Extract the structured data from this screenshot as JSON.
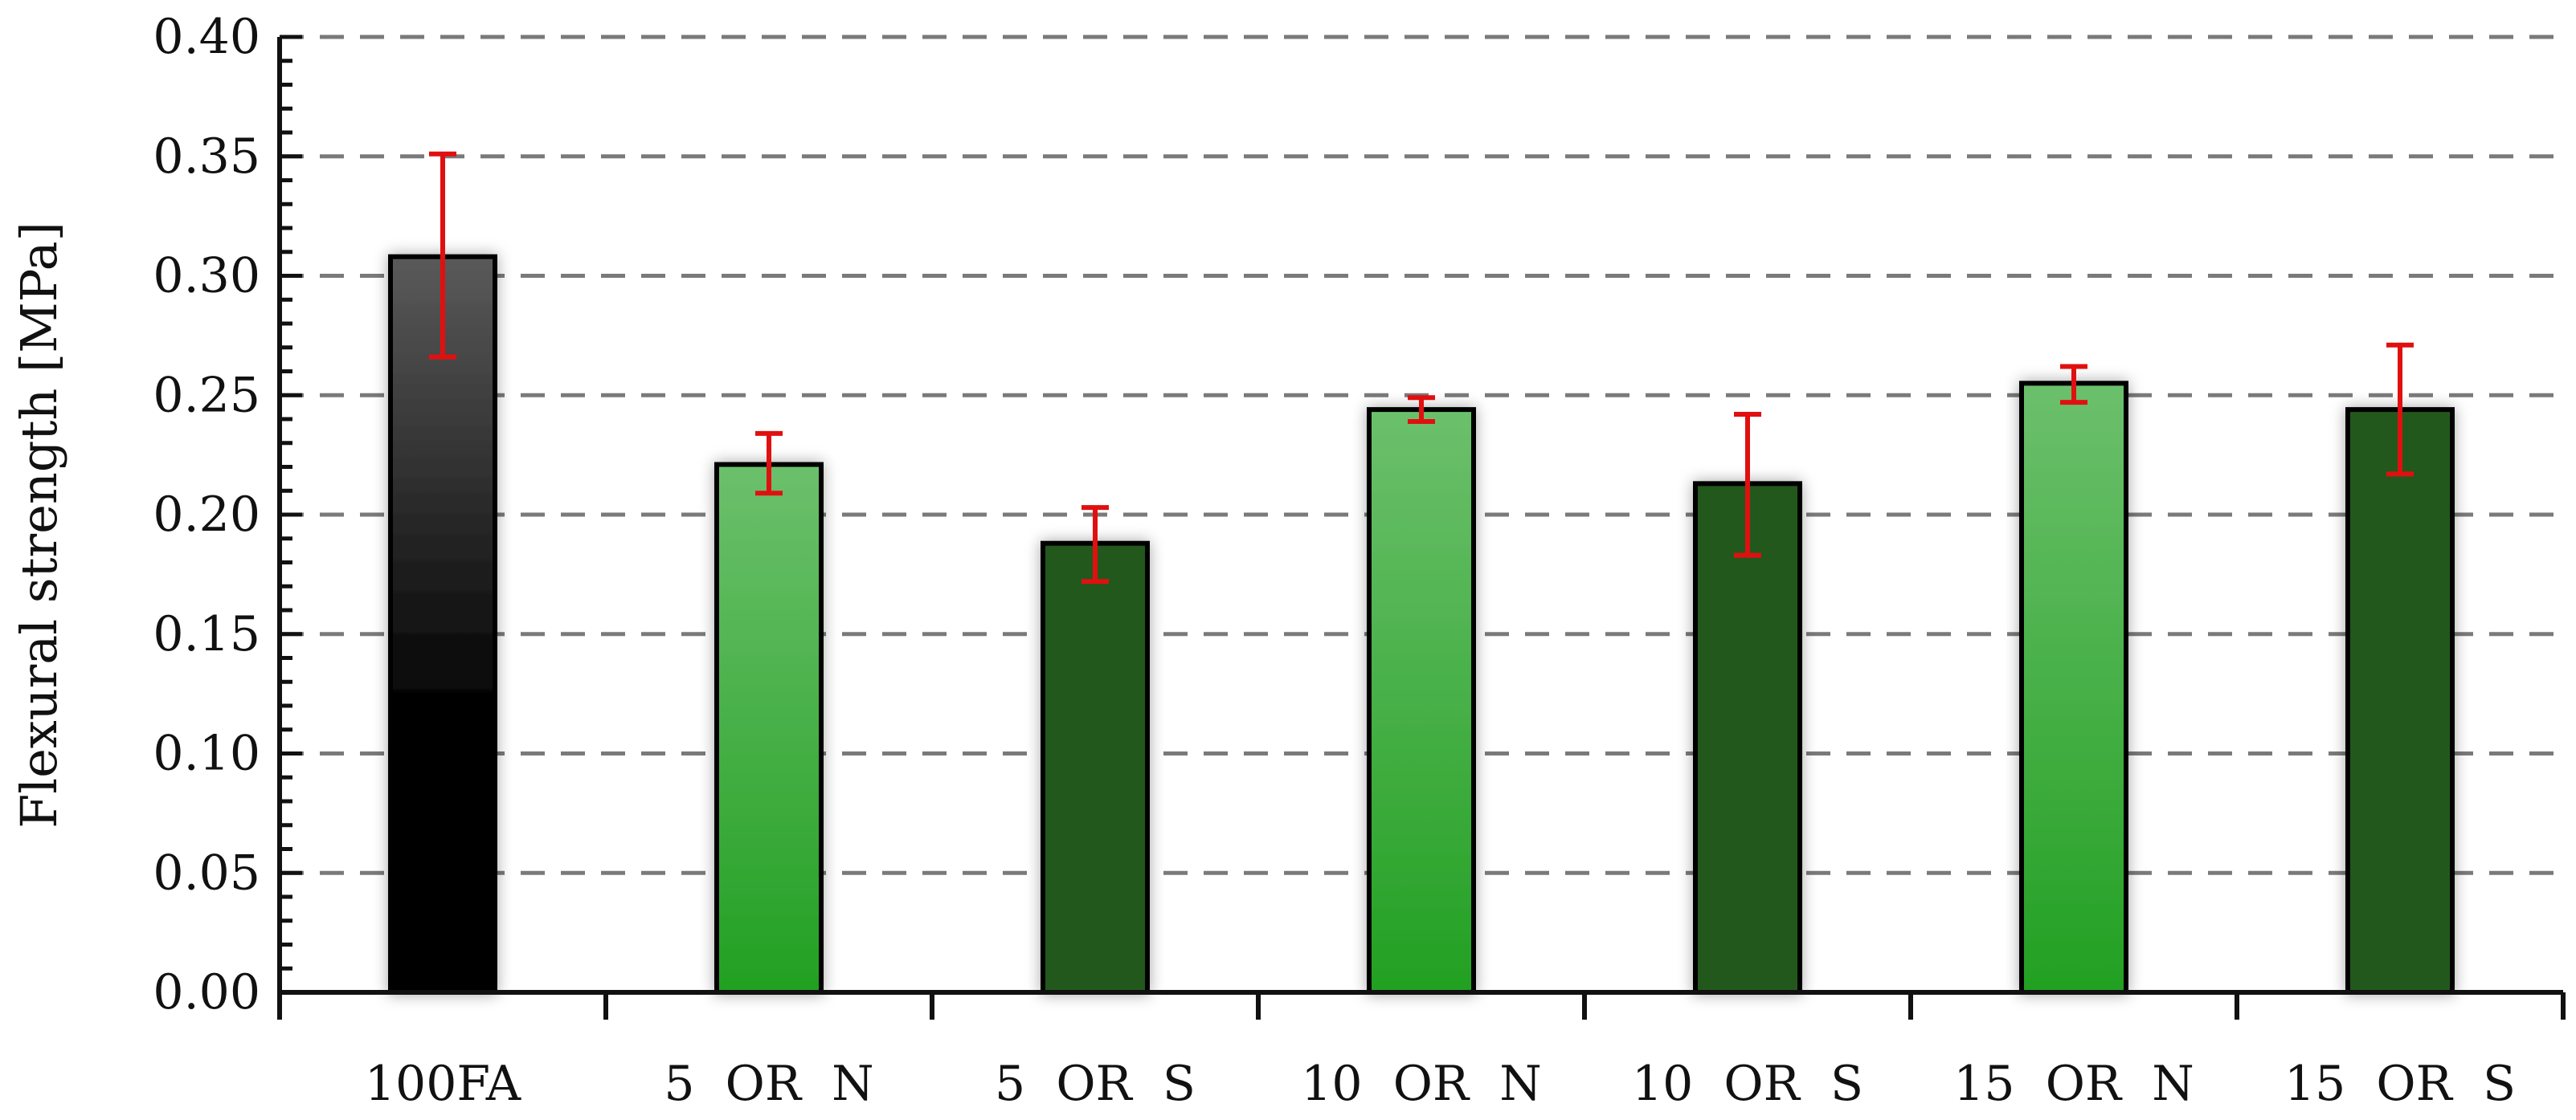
{
  "chart_data": {
    "type": "bar",
    "title": "",
    "xlabel": "",
    "ylabel": "Flexural strength [MPa]",
    "ylim": [
      0,
      0.4
    ],
    "yticks": [
      "0.00",
      "0.05",
      "0.10",
      "0.15",
      "0.20",
      "0.25",
      "0.30",
      "0.35",
      "0.40"
    ],
    "grid": "horizontal dashed",
    "categories": [
      "100FA",
      "5  OR  N",
      "5  OR  S",
      "10  OR  N",
      "10  OR  S",
      "15  OR  N",
      "15  OR  S"
    ],
    "values": [
      0.308,
      0.221,
      0.188,
      0.244,
      0.213,
      0.255,
      0.244
    ],
    "error_low": [
      0.266,
      0.209,
      0.172,
      0.239,
      0.183,
      0.247,
      0.217
    ],
    "error_high": [
      0.351,
      0.234,
      0.203,
      0.249,
      0.242,
      0.262,
      0.271
    ],
    "bar_styles": [
      "black",
      "light-green",
      "dark-green",
      "light-green",
      "dark-green",
      "light-green",
      "dark-green"
    ],
    "colors": {
      "black_top": "#5a5a5a",
      "black_bottom": "#000000",
      "light_green_top": "#6cc06c",
      "light_green_bottom": "#22a022",
      "dark_green": "#24581e",
      "error_bar": "#e01010",
      "grid": "#7a7a7a",
      "axis": "#111111"
    }
  }
}
